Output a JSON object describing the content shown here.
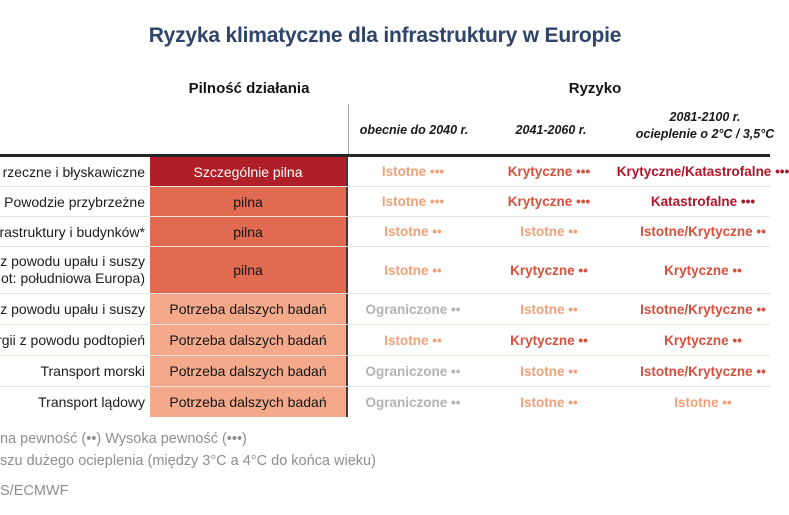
{
  "title": "Ryzyka klimatyczne dla infrastruktury w Europie",
  "headers": {
    "urgency": "Pilność działania",
    "risk": "Ryzyko",
    "period_1": "obecnie do 2040 r.",
    "period_2": "2041-2060 r.",
    "period_3_line1": "2081-2100 r.",
    "period_3_line2": "ocieplenie o 2°C / 3,5°C"
  },
  "rows": [
    {
      "label": "rzeczne i błyskawiczne",
      "urgency": {
        "text": "Szczególnie pilna",
        "level": "szczegolnie-pilna"
      },
      "risk_2040": {
        "text": "Istotne •••",
        "level": "istotne"
      },
      "risk_2041_2060": {
        "text": "Krytyczne •••",
        "level": "krytyczne"
      },
      "risk_2081_2100": {
        "text": "Krytyczne/Katastrofalne •••",
        "level": "katastrofalne"
      }
    },
    {
      "label": "Powodzie przybrzeżne",
      "urgency": {
        "text": "pilna",
        "level": "pilna"
      },
      "risk_2040": {
        "text": "Istotne •••",
        "level": "istotne"
      },
      "risk_2041_2060": {
        "text": "Krytyczne •••",
        "level": "krytyczne"
      },
      "risk_2081_2100": {
        "text": "Katastrofalne •••",
        "level": "katastrofalne"
      }
    },
    {
      "label": "rastruktury i budynków*",
      "urgency": {
        "text": "pilna",
        "level": "pilna"
      },
      "risk_2040": {
        "text": "Istotne ••",
        "level": "istotne"
      },
      "risk_2041_2060": {
        "text": "Istotne ••",
        "level": "istotne"
      },
      "risk_2081_2100": {
        "text": "Istotne/Krytyczne ••",
        "level": "krytyczne"
      }
    },
    {
      "label": "z powodu upału i suszy",
      "label_line2": "ot: południowa Europa)",
      "urgency": {
        "text": "pilna",
        "level": "pilna"
      },
      "risk_2040": {
        "text": "Istotne ••",
        "level": "istotne"
      },
      "risk_2041_2060": {
        "text": "Krytyczne ••",
        "level": "krytyczne"
      },
      "risk_2081_2100": {
        "text": "Krytyczne ••",
        "level": "krytyczne"
      }
    },
    {
      "label": "z powodu upału i suszy",
      "urgency": {
        "text": "Potrzeba dalszych badań",
        "level": "badania"
      },
      "risk_2040": {
        "text": "Ograniczone ••",
        "level": "ograniczone"
      },
      "risk_2041_2060": {
        "text": "Istotne ••",
        "level": "istotne"
      },
      "risk_2081_2100": {
        "text": "Istotne/Krytyczne ••",
        "level": "krytyczne"
      }
    },
    {
      "label": "rgii z powodu podtopień",
      "urgency": {
        "text": "Potrzeba dalszych badań",
        "level": "badania"
      },
      "risk_2040": {
        "text": "Istotne ••",
        "level": "istotne"
      },
      "risk_2041_2060": {
        "text": "Krytyczne ••",
        "level": "krytyczne"
      },
      "risk_2081_2100": {
        "text": "Krytyczne ••",
        "level": "krytyczne"
      }
    },
    {
      "label": "Transport morski",
      "urgency": {
        "text": "Potrzeba dalszych badań",
        "level": "badania"
      },
      "risk_2040": {
        "text": "Ograniczone ••",
        "level": "ograniczone"
      },
      "risk_2041_2060": {
        "text": "Istotne ••",
        "level": "istotne"
      },
      "risk_2081_2100": {
        "text": "Istotne/Krytyczne ••",
        "level": "krytyczne"
      }
    },
    {
      "label": "Transport lądowy",
      "urgency": {
        "text": "Potrzeba dalszych badań",
        "level": "badania"
      },
      "risk_2040": {
        "text": "Ograniczone ••",
        "level": "ograniczone"
      },
      "risk_2041_2060": {
        "text": "Istotne ••",
        "level": "istotne"
      },
      "risk_2081_2100": {
        "text": "Istotne ••",
        "level": "istotne"
      }
    }
  ],
  "footer": {
    "legend": "na pewność (••) Wysoka pewność (•••)",
    "note": "szu dużego ocieplenia (między 3°C a 4°C do końca wieku)",
    "source": "S/ECMWF"
  },
  "colors": {
    "title": "#2e4468",
    "urgency_szczegolnie_pilna_bg": "#b01f27",
    "urgency_pilna_bg": "#e06b51",
    "urgency_badania_bg": "#f3a98a",
    "risk_istotne": "#f1a078",
    "risk_krytyczne": "#d6503c",
    "risk_katastrofalne": "#b0152a",
    "risk_ograniczone": "#b5b2b2"
  },
  "chart_data": {
    "type": "table",
    "title": "Ryzyka klimatyczne dla infrastruktury w Europie",
    "column_groups": [
      "Pilność działania",
      "Ryzyko"
    ],
    "columns": [
      "Pilność działania",
      "Ryzyko: obecnie do 2040 r.",
      "Ryzyko: 2041-2060 r.",
      "Ryzyko: 2081-2100 r. ocieplenie o 2°C / 3,5°C"
    ],
    "legend": "na pewność (••) Wysoka pewność (•••)",
    "rows": [
      [
        "rzeczne i błyskawiczne",
        "Szczególnie pilna",
        "Istotne •••",
        "Krytyczne •••",
        "Krytyczne/Katastrofalne •••"
      ],
      [
        "Powodzie przybrzeżne",
        "pilna",
        "Istotne •••",
        "Krytyczne •••",
        "Katastrofalne •••"
      ],
      [
        "rastruktury i budynków*",
        "pilna",
        "Istotne ••",
        "Istotne ••",
        "Istotne/Krytyczne ••"
      ],
      [
        "z powodu upału i suszy (ot: południowa Europa)",
        "pilna",
        "Istotne ••",
        "Krytyczne ••",
        "Krytyczne ••"
      ],
      [
        "z powodu upału i suszy",
        "Potrzeba dalszych badań",
        "Ograniczone ••",
        "Istotne ••",
        "Istotne/Krytyczne ••"
      ],
      [
        "rgii z powodu podtopień",
        "Potrzeba dalszych badań",
        "Istotne ••",
        "Krytyczne ••",
        "Krytyczne ••"
      ],
      [
        "Transport morski",
        "Potrzeba dalszych badań",
        "Ograniczone ••",
        "Istotne ••",
        "Istotne/Krytyczne ••"
      ],
      [
        "Transport lądowy",
        "Potrzeba dalszych badań",
        "Ograniczone ••",
        "Istotne ••",
        "Istotne ••"
      ]
    ]
  }
}
